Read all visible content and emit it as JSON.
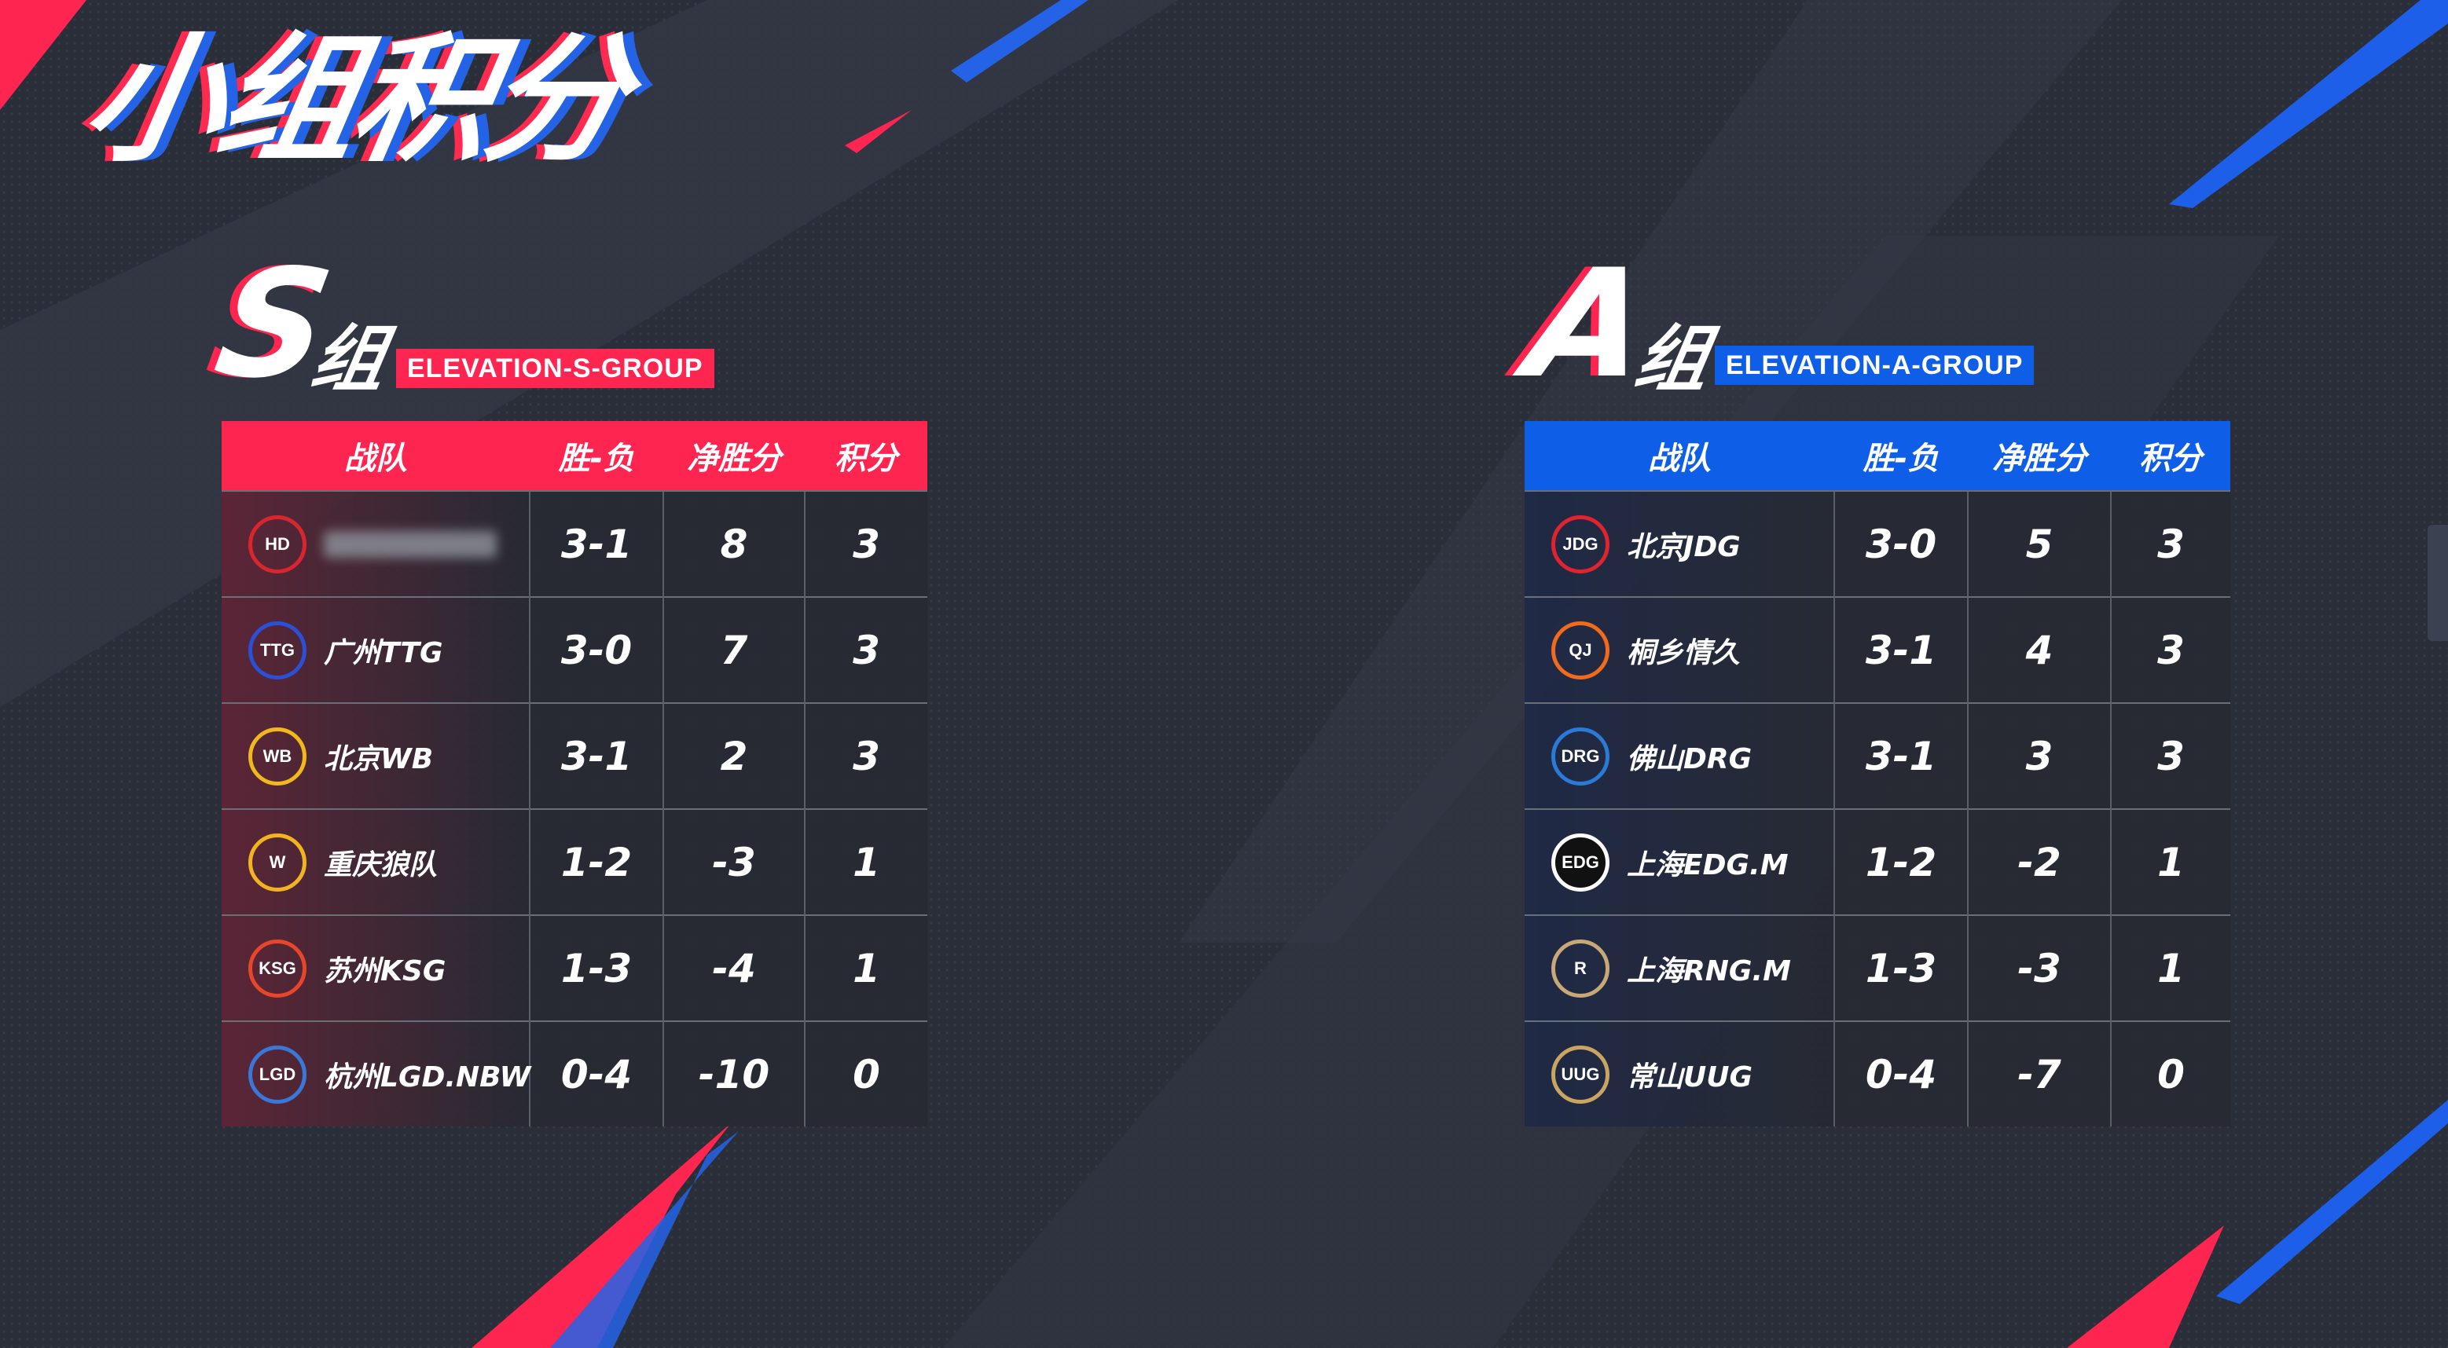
{
  "page_title": "小组积分",
  "colors": {
    "red_accent": "#ff2551",
    "blue_accent": "#0f5ee8",
    "background": "#2b2f3a"
  },
  "groups": [
    {
      "letter": "S",
      "suffix": "组",
      "tag": "ELEVATION-S-GROUP",
      "headers": [
        "战队",
        "胜-负",
        "净胜分",
        "积分"
      ],
      "rows": [
        {
          "team": "",
          "logo_icon": "hd-logo-icon",
          "logo_text": "HD",
          "logo_color": "#d9262e",
          "wl": "3-1",
          "net": "8",
          "pts": "3"
        },
        {
          "team": "广州TTG",
          "logo_icon": "ttg-logo-icon",
          "logo_text": "TTG",
          "logo_color": "#2b4fd6",
          "wl": "3-0",
          "net": "7",
          "pts": "3"
        },
        {
          "team": "北京WB",
          "logo_icon": "wb-logo-icon",
          "logo_text": "WB",
          "logo_color": "#f0b81a",
          "wl": "3-1",
          "net": "2",
          "pts": "3"
        },
        {
          "team": "重庆狼队",
          "logo_icon": "wolves-logo-icon",
          "logo_text": "W",
          "logo_color": "#f2b321",
          "wl": "1-2",
          "net": "-3",
          "pts": "1"
        },
        {
          "team": "苏州KSG",
          "logo_icon": "ksg-logo-icon",
          "logo_text": "KSG",
          "logo_color": "#e8462a",
          "wl": "1-3",
          "net": "-4",
          "pts": "1"
        },
        {
          "team": "杭州LGD.NBW",
          "logo_icon": "lgd-logo-icon",
          "logo_text": "LGD",
          "logo_color": "#3a78d8",
          "wl": "0-4",
          "net": "-10",
          "pts": "0"
        }
      ]
    },
    {
      "letter": "A",
      "suffix": "组",
      "tag": "ELEVATION-A-GROUP",
      "headers": [
        "战队",
        "胜-负",
        "净胜分",
        "积分"
      ],
      "rows": [
        {
          "team": "北京JDG",
          "logo_icon": "jdg-logo-icon",
          "logo_text": "JDG",
          "logo_color": "#e0232f",
          "wl": "3-0",
          "net": "5",
          "pts": "3"
        },
        {
          "team": "桐乡情久",
          "logo_icon": "qj-logo-icon",
          "logo_text": "QJ",
          "logo_color": "#f26a1b",
          "wl": "3-1",
          "net": "4",
          "pts": "3"
        },
        {
          "team": "佛山DRG",
          "logo_icon": "drg-logo-icon",
          "logo_text": "DRG",
          "logo_color": "#2a7ad8",
          "wl": "3-1",
          "net": "3",
          "pts": "3"
        },
        {
          "team": "上海EDG.M",
          "logo_icon": "edg-logo-icon",
          "logo_text": "EDG",
          "logo_color": "#ffffff",
          "wl": "1-2",
          "net": "-2",
          "pts": "1"
        },
        {
          "team": "上海RNG.M",
          "logo_icon": "rng-logo-icon",
          "logo_text": "R",
          "logo_color": "#c9a878",
          "wl": "1-3",
          "net": "-3",
          "pts": "1"
        },
        {
          "team": "常山UUG",
          "logo_icon": "uug-logo-icon",
          "logo_text": "UUG",
          "logo_color": "#c8a560",
          "wl": "0-4",
          "net": "-7",
          "pts": "0"
        }
      ]
    }
  ]
}
